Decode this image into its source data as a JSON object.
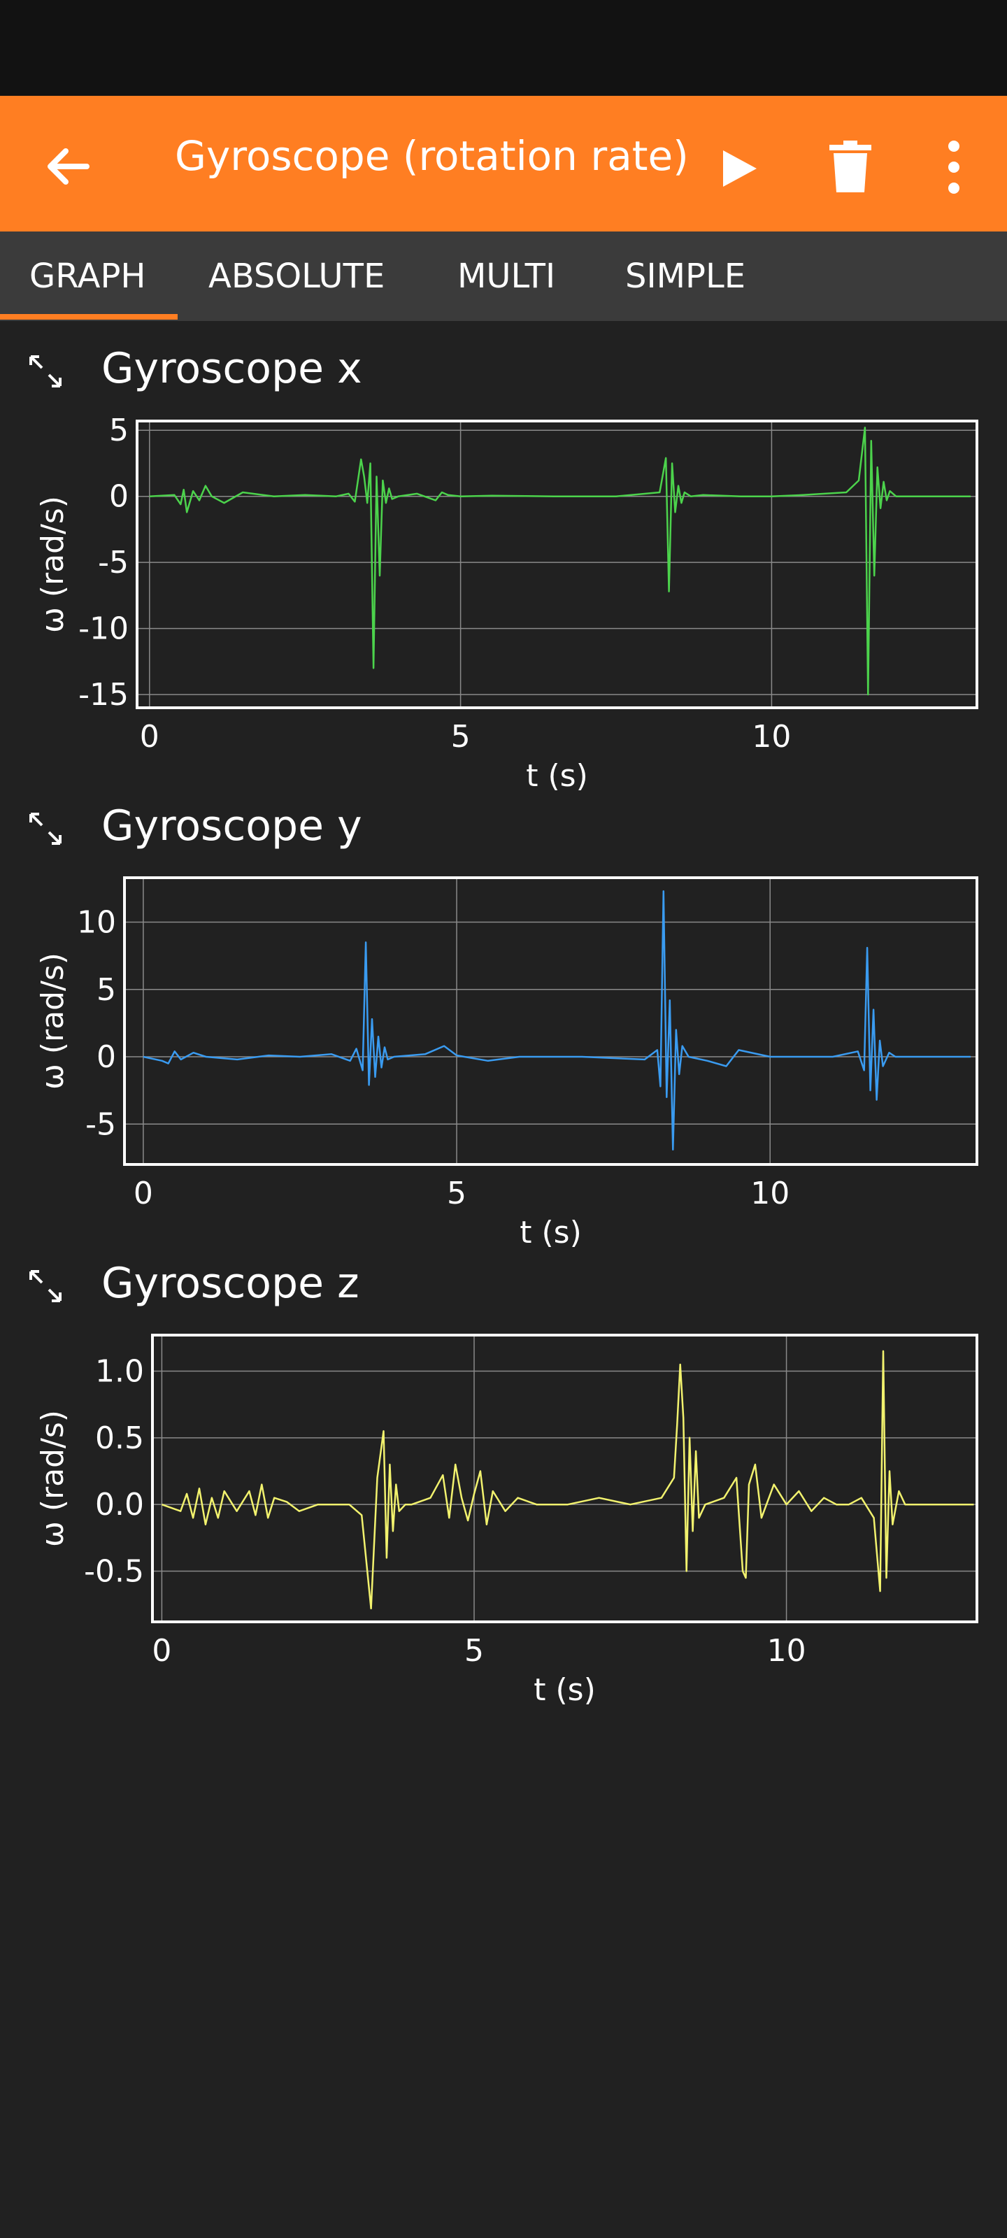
{
  "app": {
    "title": "Gyroscope (rotation rate)",
    "accent_color": "#FF7E22",
    "icons": [
      "back-arrow-icon",
      "play-icon",
      "trash-icon",
      "more-vert-icon"
    ]
  },
  "tabs": [
    {
      "label": "GRAPH",
      "selected": true
    },
    {
      "label": "ABSOLUTE",
      "selected": false
    },
    {
      "label": "MULTI",
      "selected": false
    },
    {
      "label": "SIMPLE",
      "selected": false
    }
  ],
  "graphs": [
    {
      "title": "Gyroscope x",
      "expand_icon": "expand-icon"
    },
    {
      "title": "Gyroscope y",
      "expand_icon": "expand-icon"
    },
    {
      "title": "Gyroscope z",
      "expand_icon": "expand-icon"
    }
  ],
  "chart_data": [
    {
      "type": "line",
      "title": "Gyroscope x",
      "xlabel": "t (s)",
      "ylabel": "ω (rad/s)",
      "xlim": [
        -0.2,
        13.3
      ],
      "ylim": [
        -16,
        5.7
      ],
      "xticks": [
        0,
        5,
        10
      ],
      "yticks": [
        5,
        0,
        -5,
        -10,
        -15
      ],
      "ytick_labels": [
        "5",
        "0",
        "-5",
        "-10",
        "-15"
      ],
      "grid": true,
      "color": "#4CD34C",
      "series": [
        {
          "x": [
            0,
            0.4,
            0.5,
            0.55,
            0.6,
            0.7,
            0.8,
            0.9,
            1.0,
            1.2,
            1.5,
            2.0,
            2.5,
            3.0,
            3.2,
            3.3,
            3.4,
            3.45,
            3.5,
            3.55,
            3.6,
            3.65,
            3.7,
            3.75,
            3.8,
            3.85,
            3.9,
            4.0,
            4.3,
            4.6,
            4.7,
            4.8,
            5.0,
            5.5,
            6.5,
            7.5,
            8.2,
            8.3,
            8.35,
            8.4,
            8.45,
            8.5,
            8.55,
            8.6,
            8.7,
            8.9,
            9.5,
            10.0,
            10.5,
            11.2,
            11.4,
            11.5,
            11.55,
            11.6,
            11.65,
            11.7,
            11.75,
            11.8,
            11.85,
            11.9,
            12.0,
            12.5,
            13.2
          ],
          "y": [
            0,
            0.1,
            -0.6,
            0.5,
            -1.2,
            0.4,
            -0.3,
            0.8,
            0,
            -0.5,
            0.3,
            0,
            0.1,
            0,
            0.2,
            -0.4,
            2.8,
            1.5,
            -0.5,
            2.5,
            -13,
            1.5,
            -6,
            1.2,
            -0.5,
            0.6,
            -0.2,
            0,
            0.2,
            -0.3,
            0.3,
            0.1,
            0,
            0.05,
            0,
            0,
            0.3,
            2.9,
            -7.2,
            2.5,
            -1.2,
            0.8,
            -0.5,
            0.3,
            0,
            0.1,
            0,
            0,
            0.1,
            0.3,
            1.2,
            5.2,
            -15,
            4.2,
            -6,
            2.2,
            -0.9,
            1.1,
            -0.3,
            0.4,
            0,
            0,
            0
          ]
        }
      ]
    },
    {
      "type": "line",
      "title": "Gyroscope y",
      "xlabel": "t (s)",
      "ylabel": "ω (rad/s)",
      "xlim": [
        -0.3,
        13.3
      ],
      "ylim": [
        -8,
        13.3
      ],
      "xticks": [
        0,
        5,
        10
      ],
      "yticks": [
        10,
        5,
        0,
        -5
      ],
      "ytick_labels": [
        "10",
        "5",
        "0",
        "-5"
      ],
      "grid": true,
      "color": "#3A9BF0",
      "series": [
        {
          "x": [
            0,
            0.3,
            0.4,
            0.5,
            0.6,
            0.8,
            1.0,
            1.5,
            2.0,
            2.5,
            3.0,
            3.3,
            3.4,
            3.5,
            3.55,
            3.6,
            3.65,
            3.7,
            3.75,
            3.8,
            3.85,
            3.9,
            4.0,
            4.5,
            4.8,
            5.0,
            5.5,
            6.0,
            7.0,
            8.0,
            8.2,
            8.25,
            8.3,
            8.35,
            8.4,
            8.45,
            8.5,
            8.55,
            8.6,
            8.7,
            9.0,
            9.3,
            9.5,
            10.0,
            11.0,
            11.4,
            11.5,
            11.55,
            11.6,
            11.65,
            11.7,
            11.75,
            11.8,
            11.9,
            12.0,
            12.5,
            13.2
          ],
          "y": [
            0,
            -0.3,
            -0.5,
            0.4,
            -0.2,
            0.3,
            0,
            -0.2,
            0.1,
            0,
            0.2,
            -0.3,
            0.6,
            -1.0,
            8.5,
            -2.1,
            2.8,
            -1.5,
            1.5,
            -0.8,
            0.7,
            -0.2,
            0,
            0.2,
            0.8,
            0.1,
            -0.3,
            0,
            0,
            -0.2,
            0.5,
            -2.2,
            12.3,
            -3.0,
            4.2,
            -6.9,
            2.0,
            -1.3,
            0.8,
            0,
            -0.3,
            -0.7,
            0.5,
            0,
            0,
            0.4,
            -1.0,
            8.1,
            -2.5,
            3.5,
            -3.2,
            1.2,
            -0.7,
            0.3,
            0,
            0,
            0
          ]
        }
      ]
    },
    {
      "type": "line",
      "title": "Gyroscope z",
      "xlabel": "t (s)",
      "ylabel": "ω (rad/s)",
      "xlim": [
        -0.15,
        13.05
      ],
      "ylim": [
        -0.88,
        1.27
      ],
      "xticks": [
        0,
        5,
        10
      ],
      "yticks": [
        1.0,
        0.5,
        0.0,
        -0.5
      ],
      "ytick_labels": [
        "1.0",
        "0.5",
        "0.0",
        "-0.5"
      ],
      "grid": true,
      "color": "#F2F26E",
      "series": [
        {
          "x": [
            0,
            0.3,
            0.4,
            0.5,
            0.6,
            0.7,
            0.8,
            0.9,
            1.0,
            1.2,
            1.4,
            1.5,
            1.6,
            1.7,
            1.8,
            2.0,
            2.2,
            2.5,
            3.0,
            3.2,
            3.35,
            3.45,
            3.55,
            3.6,
            3.65,
            3.7,
            3.75,
            3.8,
            3.9,
            4.0,
            4.3,
            4.5,
            4.6,
            4.7,
            4.8,
            4.9,
            5.0,
            5.1,
            5.2,
            5.3,
            5.5,
            5.7,
            6.0,
            6.5,
            7.0,
            7.5,
            8.0,
            8.2,
            8.25,
            8.3,
            8.35,
            8.4,
            8.45,
            8.5,
            8.55,
            8.6,
            8.7,
            9.0,
            9.2,
            9.3,
            9.35,
            9.4,
            9.5,
            9.6,
            9.8,
            10.0,
            10.2,
            10.4,
            10.6,
            10.8,
            11.0,
            11.2,
            11.4,
            11.5,
            11.55,
            11.6,
            11.65,
            11.7,
            11.8,
            11.9,
            12.0,
            12.5,
            13.0
          ],
          "y": [
            0,
            -0.05,
            0.08,
            -0.1,
            0.12,
            -0.15,
            0.05,
            -0.1,
            0.1,
            -0.05,
            0.1,
            -0.08,
            0.15,
            -0.1,
            0.05,
            0.02,
            -0.05,
            0,
            0,
            -0.08,
            -0.78,
            0.2,
            0.55,
            -0.4,
            0.3,
            -0.2,
            0.15,
            -0.05,
            0,
            0,
            0.05,
            0.22,
            -0.1,
            0.3,
            0.05,
            -0.12,
            0.08,
            0.25,
            -0.15,
            0.1,
            -0.05,
            0.05,
            0,
            0,
            0.05,
            0,
            0.05,
            0.2,
            0.6,
            1.05,
            0.65,
            -0.5,
            0.5,
            -0.2,
            0.4,
            -0.1,
            0,
            0.05,
            0.2,
            -0.5,
            -0.55,
            0.15,
            0.3,
            -0.1,
            0.15,
            0,
            0.1,
            -0.05,
            0.05,
            0,
            0,
            0.05,
            -0.1,
            -0.65,
            1.15,
            -0.55,
            0.25,
            -0.15,
            0.1,
            0,
            0,
            0,
            0
          ]
        }
      ]
    }
  ]
}
